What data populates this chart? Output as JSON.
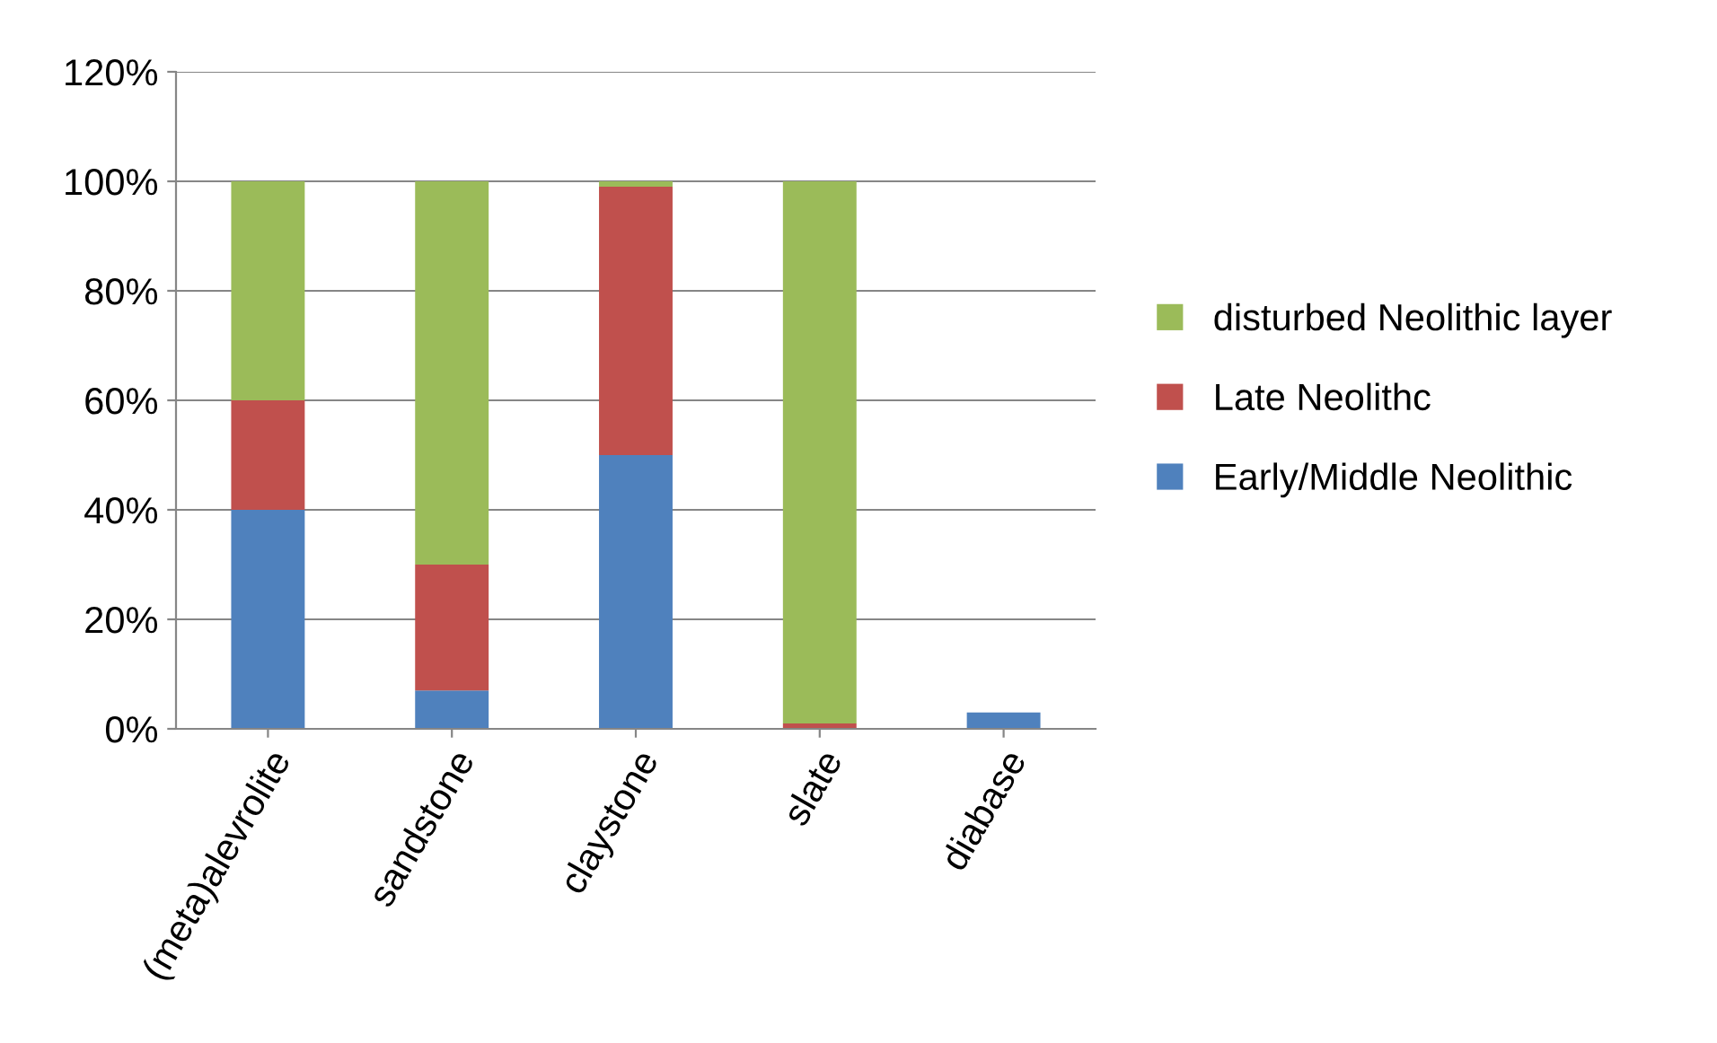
{
  "chart_data": {
    "type": "bar",
    "stacked": true,
    "categories": [
      "(meta)alevrolite",
      "sandstone",
      "claystone",
      "slate",
      "diabase"
    ],
    "series": [
      {
        "name": "Early/Middle Neolithic",
        "color": "#4f81bd",
        "values": [
          40,
          7,
          50,
          0,
          3
        ]
      },
      {
        "name": "Late Neolithc",
        "color": "#c0504d",
        "values": [
          20,
          23,
          49,
          1,
          0
        ]
      },
      {
        "name": "disturbed Neolithic layer",
        "color": "#9bbb59",
        "values": [
          40,
          70,
          1,
          99,
          0
        ]
      }
    ],
    "ylim": [
      0,
      120
    ],
    "yticks": [
      {
        "value": 0,
        "label": "0%"
      },
      {
        "value": 20,
        "label": "20%"
      },
      {
        "value": 40,
        "label": "40%"
      },
      {
        "value": 60,
        "label": "60%"
      },
      {
        "value": 80,
        "label": "80%"
      },
      {
        "value": 100,
        "label": "100%"
      },
      {
        "value": 120,
        "label": "120%"
      }
    ],
    "grid": "y",
    "legend": "right"
  }
}
